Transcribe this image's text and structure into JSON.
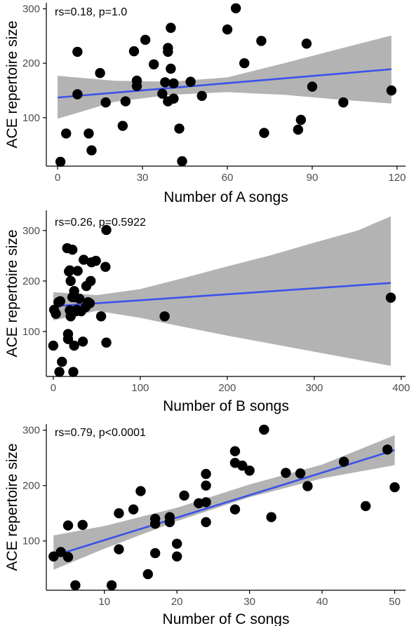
{
  "colors": {
    "point": "#000000",
    "fit_line": "#3b52ea",
    "ci_band": "#b3b3b3",
    "axis": "#000000"
  },
  "chart_data": [
    {
      "type": "scatter",
      "title": "",
      "xlabel": "Number of A songs",
      "ylabel": "ACE repertoire size",
      "annotation": "rs=0.18, p=1.0",
      "xlim": [
        -4,
        123
      ],
      "ylim": [
        11,
        311
      ],
      "xticks": [
        0,
        30,
        60,
        90,
        120
      ],
      "yticks": [
        100,
        200,
        300
      ],
      "grid": false,
      "points": [
        [
          1,
          19
        ],
        [
          3,
          71
        ],
        [
          7,
          221
        ],
        [
          7,
          143
        ],
        [
          11,
          71
        ],
        [
          12,
          40
        ],
        [
          15,
          182
        ],
        [
          17,
          128
        ],
        [
          23,
          85
        ],
        [
          24,
          130
        ],
        [
          27,
          222
        ],
        [
          28,
          168
        ],
        [
          28,
          158
        ],
        [
          31,
          243
        ],
        [
          34,
          198
        ],
        [
          37,
          144
        ],
        [
          38,
          165
        ],
        [
          39,
          130
        ],
        [
          39,
          221
        ],
        [
          39,
          228
        ],
        [
          40,
          265
        ],
        [
          40,
          190
        ],
        [
          41,
          163
        ],
        [
          41,
          135
        ],
        [
          43,
          80
        ],
        [
          44,
          20
        ],
        [
          47,
          166
        ],
        [
          51,
          140
        ],
        [
          60,
          262
        ],
        [
          63,
          301
        ],
        [
          66,
          200
        ],
        [
          72,
          241
        ],
        [
          73,
          72
        ],
        [
          85,
          78
        ],
        [
          86,
          96
        ],
        [
          88,
          236
        ],
        [
          90,
          157
        ],
        [
          101,
          128
        ],
        [
          118,
          150
        ]
      ],
      "fit": {
        "x": [
          0,
          118
        ],
        "y": [
          137,
          189
        ]
      },
      "ci": {
        "x": [
          0,
          20,
          40,
          60,
          80,
          100,
          118
        ],
        "lower": [
          98,
          129,
          142,
          147,
          142,
          133,
          126
        ],
        "upper": [
          177,
          168,
          166,
          174,
          200,
          227,
          251
        ]
      }
    },
    {
      "type": "scatter",
      "title": "",
      "xlabel": "Number of B songs",
      "ylabel": "ACE repertoire size",
      "annotation": "rs=0.26, p=0.5922",
      "xlim": [
        -8,
        405
      ],
      "ylim": [
        11,
        340
      ],
      "xticks": [
        0,
        100,
        200,
        300,
        400
      ],
      "yticks": [
        100,
        200,
        300
      ],
      "grid": false,
      "points": [
        [
          0,
          72
        ],
        [
          1,
          143
        ],
        [
          3,
          135
        ],
        [
          6,
          158
        ],
        [
          7,
          20
        ],
        [
          8,
          160
        ],
        [
          10,
          40
        ],
        [
          16,
          265
        ],
        [
          17,
          95
        ],
        [
          17,
          85
        ],
        [
          18,
          219
        ],
        [
          19,
          221
        ],
        [
          19,
          142
        ],
        [
          20,
          130
        ],
        [
          20,
          200
        ],
        [
          22,
          262
        ],
        [
          22,
          168
        ],
        [
          23,
          20
        ],
        [
          24,
          72
        ],
        [
          24,
          180
        ],
        [
          25,
          168
        ],
        [
          26,
          140
        ],
        [
          27,
          143
        ],
        [
          28,
          220
        ],
        [
          30,
          165
        ],
        [
          32,
          140
        ],
        [
          34,
          80
        ],
        [
          35,
          242
        ],
        [
          37,
          148
        ],
        [
          38,
          190
        ],
        [
          40,
          158
        ],
        [
          42,
          156
        ],
        [
          43,
          200
        ],
        [
          44,
          237
        ],
        [
          49,
          240
        ],
        [
          55,
          130
        ],
        [
          60,
          228
        ],
        [
          61,
          78
        ],
        [
          61,
          301
        ],
        [
          128,
          130
        ],
        [
          388,
          167
        ]
      ],
      "fit": {
        "x": [
          0,
          388
        ],
        "y": [
          150,
          196
        ]
      },
      "ci": {
        "x": [
          0,
          50,
          100,
          150,
          200,
          250,
          300,
          350,
          388
        ],
        "lower": [
          122,
          141,
          127,
          109,
          92,
          76,
          60,
          44,
          32
        ],
        "upper": [
          178,
          172,
          184,
          206,
          229,
          251,
          276,
          300,
          328
        ]
      }
    },
    {
      "type": "scatter",
      "title": "",
      "xlabel": "Number of C songs",
      "ylabel": "ACE repertoire size",
      "annotation": "rs=0.79, p<0.0001",
      "xlim": [
        2,
        51.5
      ],
      "ylim": [
        11,
        311
      ],
      "xticks": [
        10,
        20,
        30,
        40,
        50
      ],
      "yticks": [
        100,
        200,
        300
      ],
      "grid": false,
      "points": [
        [
          3,
          72
        ],
        [
          4,
          80
        ],
        [
          5,
          128
        ],
        [
          5,
          71
        ],
        [
          6,
          20
        ],
        [
          7,
          129
        ],
        [
          11,
          20
        ],
        [
          12,
          150
        ],
        [
          12,
          85
        ],
        [
          14,
          157
        ],
        [
          15,
          190
        ],
        [
          16,
          40
        ],
        [
          17,
          78
        ],
        [
          17,
          140
        ],
        [
          17,
          131
        ],
        [
          19,
          143
        ],
        [
          19,
          134
        ],
        [
          20,
          95
        ],
        [
          20,
          72
        ],
        [
          21,
          182
        ],
        [
          23,
          168
        ],
        [
          24,
          170
        ],
        [
          24,
          200
        ],
        [
          24,
          221
        ],
        [
          24,
          134
        ],
        [
          28,
          262
        ],
        [
          28,
          241
        ],
        [
          28,
          157
        ],
        [
          29,
          236
        ],
        [
          30,
          227
        ],
        [
          32,
          301
        ],
        [
          33,
          143
        ],
        [
          35,
          223
        ],
        [
          37,
          222
        ],
        [
          38,
          199
        ],
        [
          43,
          243
        ],
        [
          46,
          163
        ],
        [
          49,
          265
        ],
        [
          50,
          197
        ]
      ],
      "fit": {
        "x": [
          3,
          50
        ],
        "y": [
          73,
          264
        ]
      },
      "ci": {
        "x": [
          3,
          10,
          20,
          30,
          40,
          50
        ],
        "lower": [
          48,
          86,
          136,
          179,
          213,
          237
        ],
        "upper": [
          110,
          127,
          160,
          202,
          238,
          291
        ]
      }
    }
  ]
}
